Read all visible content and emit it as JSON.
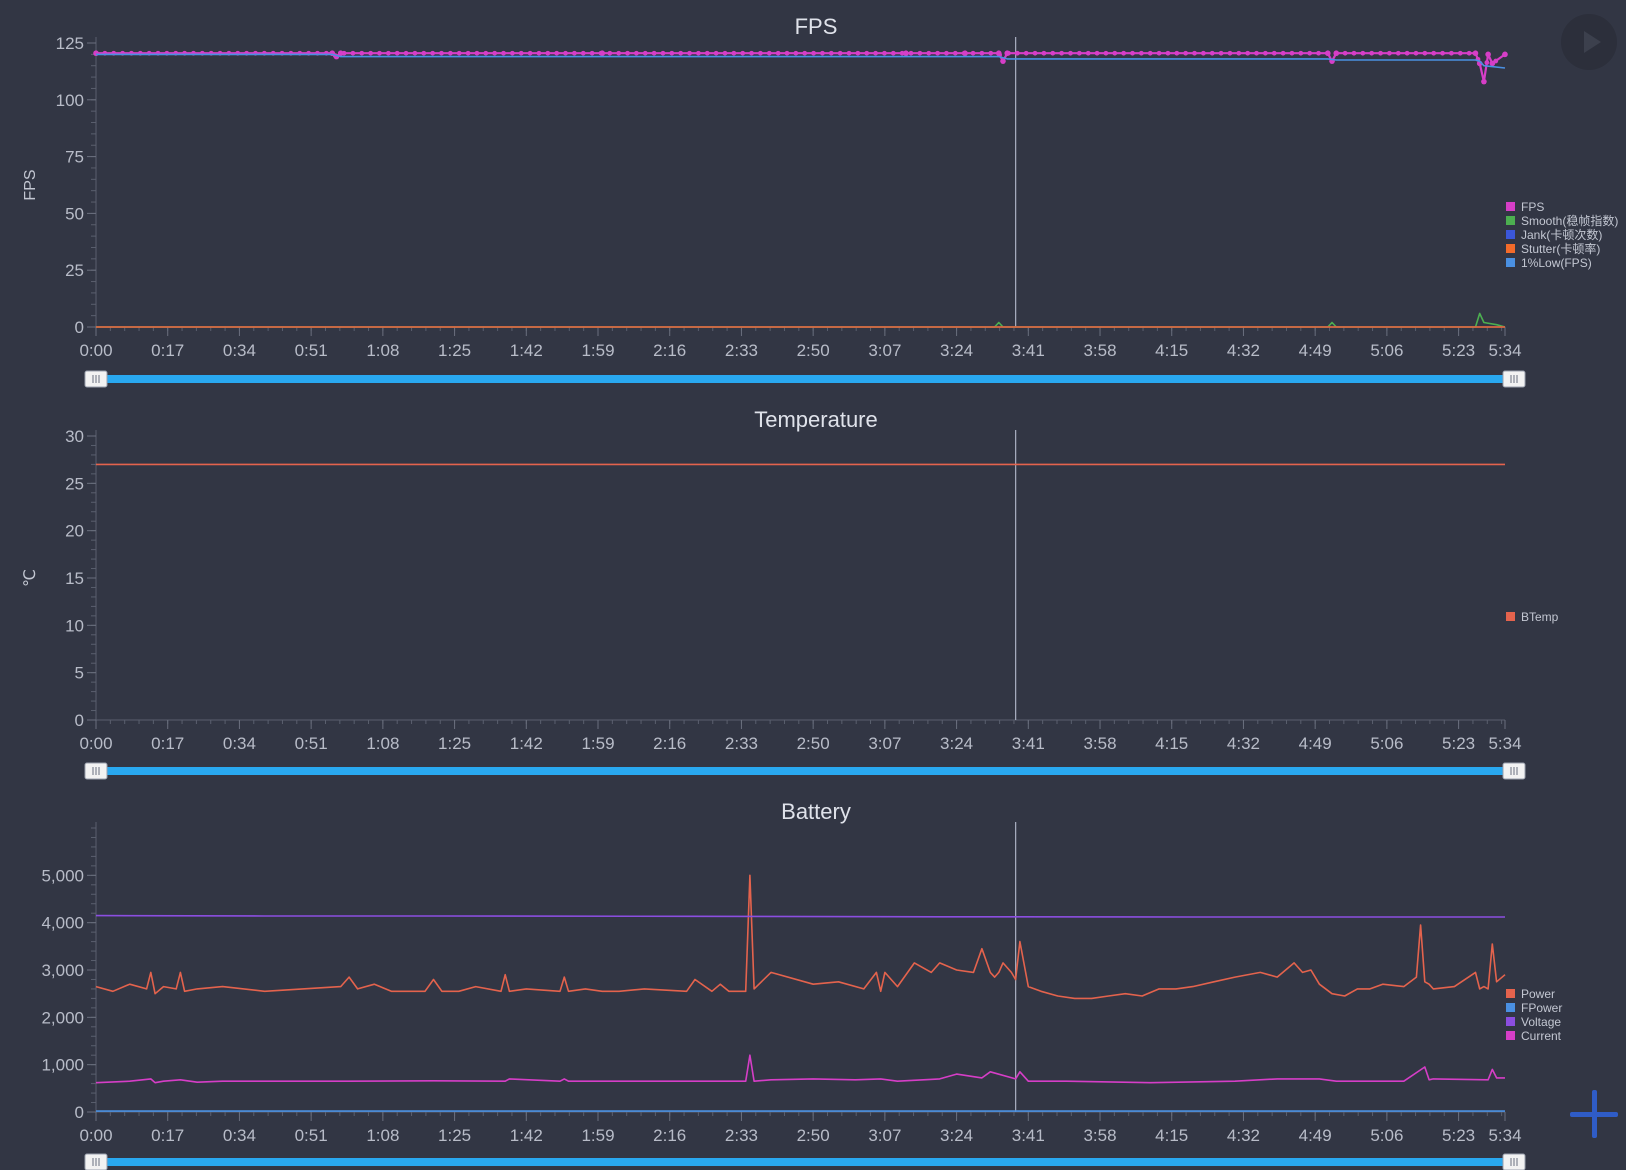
{
  "controls": {
    "play_icon": "play-icon",
    "add_icon": "plus-icon"
  },
  "chart_data": [
    {
      "type": "line",
      "title": "FPS",
      "ylabel": "FPS",
      "ylim": [
        0,
        125
      ],
      "yticks": [
        0,
        25,
        50,
        75,
        100,
        125
      ],
      "ytick_labels": [
        "0",
        "25",
        "50",
        "75",
        "100",
        "125"
      ],
      "xlim": [
        0,
        334
      ],
      "xticks": [
        "0:00",
        "0:17",
        "0:34",
        "0:51",
        "1:08",
        "1:25",
        "1:42",
        "1:59",
        "2:16",
        "2:33",
        "2:50",
        "3:07",
        "3:24",
        "3:41",
        "3:58",
        "4:15",
        "4:32",
        "4:49",
        "5:06",
        "5:23",
        "5:34"
      ],
      "cursor_x": "3:38",
      "legend_position": "right",
      "series": [
        {
          "name": "FPS",
          "color": "#d63ec7",
          "markers": true,
          "x": [
            0,
            56,
            57,
            58,
            120,
            192,
            206,
            214,
            215,
            216,
            292,
            293,
            294,
            327,
            328,
            329,
            330,
            331,
            334
          ],
          "y": [
            120.5,
            120.5,
            119,
            120.5,
            120.5,
            120.5,
            120.5,
            120.5,
            117,
            120.5,
            120.5,
            117,
            120.5,
            120.5,
            116,
            108,
            120,
            116,
            120
          ]
        },
        {
          "name": "Smooth(稳帧指数)",
          "color": "#4caf50",
          "x": [
            0,
            213,
            214,
            215,
            292,
            293,
            294,
            327,
            328,
            329,
            332,
            334
          ],
          "y": [
            0,
            0,
            2,
            0,
            0,
            2,
            0,
            0,
            6,
            2,
            1,
            0
          ]
        },
        {
          "name": "Jank(卡顿次数)",
          "color": "#3b57d9",
          "x": [
            0,
            334
          ],
          "y": [
            0,
            0
          ]
        },
        {
          "name": "Stutter(卡顿率)",
          "color": "#f36b2a",
          "x": [
            0,
            334
          ],
          "y": [
            0,
            0
          ]
        },
        {
          "name": "1%Low(FPS)",
          "color": "#4a90e2",
          "x": [
            0,
            56,
            58,
            214,
            216,
            292,
            294,
            327,
            328,
            329,
            334
          ],
          "y": [
            120,
            120,
            119,
            119,
            118,
            118,
            117.5,
            117.5,
            117,
            115,
            114
          ]
        }
      ]
    },
    {
      "type": "line",
      "title": "Temperature",
      "ylabel": "℃",
      "ylim": [
        0,
        30
      ],
      "yticks": [
        0,
        5,
        10,
        15,
        20,
        25,
        30
      ],
      "ytick_labels": [
        "0",
        "5",
        "10",
        "15",
        "20",
        "25",
        "30"
      ],
      "xlim": [
        0,
        334
      ],
      "xticks": [
        "0:00",
        "0:17",
        "0:34",
        "0:51",
        "1:08",
        "1:25",
        "1:42",
        "1:59",
        "2:16",
        "2:33",
        "2:50",
        "3:07",
        "3:24",
        "3:41",
        "3:58",
        "4:15",
        "4:32",
        "4:49",
        "5:06",
        "5:23",
        "5:34"
      ],
      "cursor_x": "3:38",
      "legend_position": "right",
      "series": [
        {
          "name": "BTemp",
          "color": "#e4634d",
          "x": [
            0,
            334
          ],
          "y": [
            27,
            27
          ]
        }
      ]
    },
    {
      "type": "line",
      "title": "Battery",
      "ylabel": "",
      "ylim": [
        0,
        6000
      ],
      "yticks": [
        0,
        1000,
        2000,
        3000,
        4000,
        5000
      ],
      "ytick_labels": [
        "0",
        "1,000",
        "2,000",
        "3,000",
        "4,000",
        "5,000"
      ],
      "xlim": [
        0,
        334
      ],
      "xticks": [
        "0:00",
        "0:17",
        "0:34",
        "0:51",
        "1:08",
        "1:25",
        "1:42",
        "1:59",
        "2:16",
        "2:33",
        "2:50",
        "3:07",
        "3:24",
        "3:41",
        "3:58",
        "4:15",
        "4:32",
        "4:49",
        "5:06",
        "5:23",
        "5:34"
      ],
      "cursor_x": "3:38",
      "legend_position": "right",
      "series": [
        {
          "name": "Power",
          "color": "#e4634d",
          "x": [
            0,
            4,
            8,
            12,
            13,
            14,
            16,
            19,
            20,
            21,
            24,
            30,
            40,
            58,
            60,
            62,
            66,
            70,
            78,
            80,
            82,
            86,
            90,
            96,
            97,
            98,
            102,
            110,
            111,
            112,
            116,
            120,
            124,
            130,
            140,
            142,
            146,
            148,
            150,
            154,
            155,
            156,
            160,
            170,
            176,
            182,
            185,
            186,
            187,
            190,
            194,
            198,
            200,
            204,
            208,
            210,
            212,
            213,
            214,
            215,
            217,
            218,
            219,
            221,
            224,
            228,
            232,
            236,
            240,
            244,
            248,
            252,
            256,
            260,
            265,
            270,
            276,
            280,
            284,
            286,
            288,
            290,
            293,
            296,
            299,
            302,
            305,
            310,
            313,
            314,
            315,
            316,
            317,
            322,
            327,
            328,
            329,
            330,
            331,
            332,
            334
          ],
          "y": [
            2650,
            2550,
            2700,
            2600,
            2950,
            2500,
            2650,
            2600,
            2950,
            2550,
            2600,
            2650,
            2550,
            2650,
            2850,
            2600,
            2700,
            2550,
            2550,
            2800,
            2550,
            2550,
            2650,
            2550,
            2900,
            2550,
            2600,
            2550,
            2850,
            2550,
            2600,
            2550,
            2550,
            2600,
            2550,
            2800,
            2550,
            2700,
            2550,
            2550,
            5000,
            2600,
            2950,
            2700,
            2750,
            2600,
            2950,
            2550,
            2950,
            2650,
            3150,
            2950,
            3150,
            3000,
            2950,
            3450,
            2950,
            2850,
            2950,
            3150,
            2950,
            2800,
            3600,
            2650,
            2550,
            2450,
            2400,
            2400,
            2450,
            2500,
            2450,
            2600,
            2600,
            2650,
            2750,
            2850,
            2950,
            2850,
            3150,
            2950,
            3000,
            2700,
            2500,
            2450,
            2600,
            2600,
            2700,
            2650,
            2850,
            3950,
            2750,
            2700,
            2600,
            2650,
            2950,
            2600,
            2650,
            2600,
            3550,
            2750,
            2900
          ]
        },
        {
          "name": "FPower",
          "color": "#4a90e2",
          "x": [
            0,
            334
          ],
          "y": [
            20,
            20
          ]
        },
        {
          "name": "Voltage",
          "color": "#8b4ee0",
          "x": [
            0,
            40,
            80,
            140,
            200,
            260,
            334
          ],
          "y": [
            4150,
            4140,
            4140,
            4135,
            4125,
            4120,
            4120
          ]
        },
        {
          "name": "Current",
          "color": "#d63ec7",
          "x": [
            0,
            8,
            13,
            14,
            16,
            20,
            24,
            30,
            40,
            60,
            80,
            97,
            98,
            110,
            111,
            112,
            140,
            154,
            155,
            156,
            160,
            170,
            180,
            186,
            190,
            200,
            204,
            210,
            212,
            218,
            219,
            221,
            230,
            250,
            270,
            280,
            290,
            294,
            300,
            310,
            315,
            316,
            317,
            330,
            331,
            332,
            334
          ],
          "y": [
            620,
            650,
            700,
            620,
            650,
            680,
            630,
            650,
            650,
            650,
            660,
            650,
            700,
            650,
            700,
            650,
            650,
            650,
            1200,
            650,
            680,
            700,
            680,
            700,
            650,
            700,
            800,
            720,
            850,
            700,
            850,
            650,
            650,
            620,
            650,
            700,
            700,
            650,
            650,
            650,
            950,
            680,
            700,
            680,
            900,
            720,
            720
          ]
        }
      ]
    }
  ]
}
